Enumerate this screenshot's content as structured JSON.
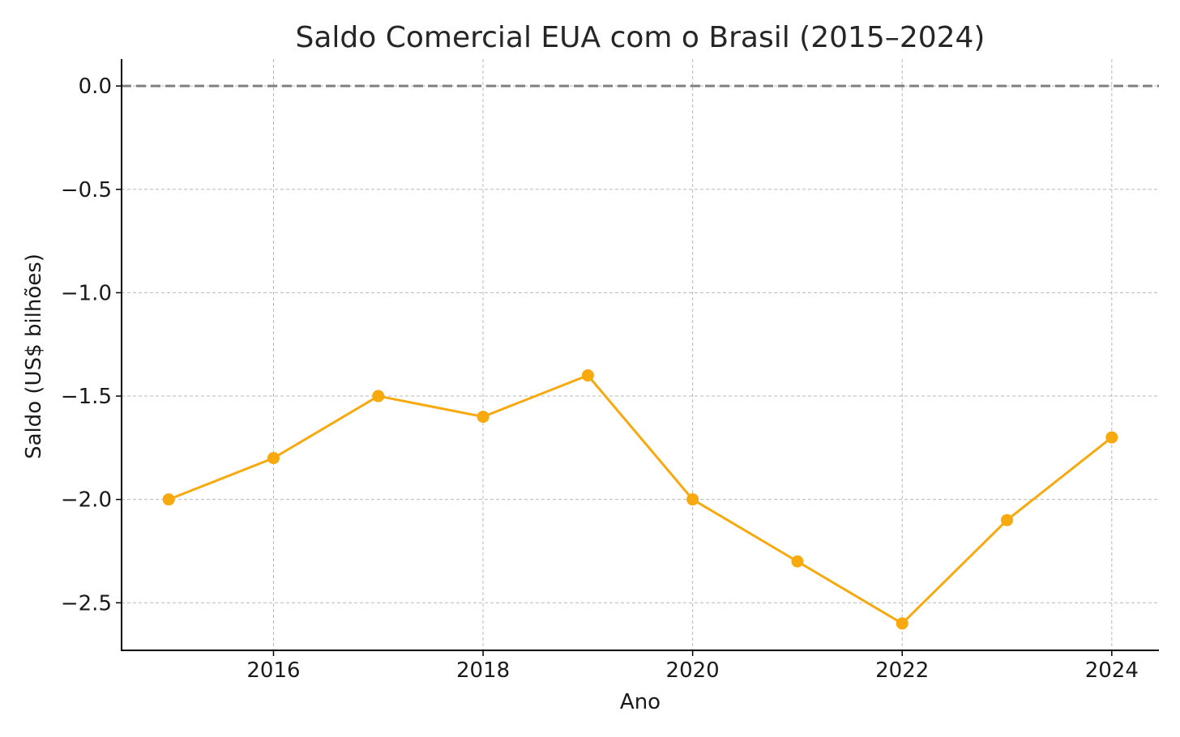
{
  "chart_data": {
    "type": "line",
    "title": "Saldo Comercial EUA com o Brasil (2015–2024)",
    "xlabel": "Ano",
    "ylabel": "Saldo (US$ bilhões)",
    "xlim": [
      2014.55,
      2024.45
    ],
    "ylim": [
      -2.73,
      0.13
    ],
    "x_ticks": [
      2016,
      2018,
      2020,
      2022,
      2024
    ],
    "x_tick_labels": [
      "2016",
      "2018",
      "2020",
      "2022",
      "2024"
    ],
    "y_ticks": [
      0.0,
      -0.5,
      -1.0,
      -1.5,
      -2.0,
      -2.5
    ],
    "y_tick_labels": [
      "0.0",
      "−0.5",
      "−1.0",
      "−1.5",
      "−2.0",
      "−2.5"
    ],
    "grid": true,
    "reference_line": {
      "y": 0,
      "style": "dashed",
      "color": "#808080"
    },
    "series": [
      {
        "x": [
          2015,
          2016,
          2017,
          2018,
          2019,
          2020,
          2021,
          2022,
          2023,
          2024
        ],
        "values": [
          -2.0,
          -1.8,
          -1.5,
          -1.6,
          -1.4,
          -2.0,
          -2.3,
          -2.6,
          -2.1,
          -1.7
        ],
        "color": "#f7a90d",
        "marker": "circle"
      }
    ]
  }
}
